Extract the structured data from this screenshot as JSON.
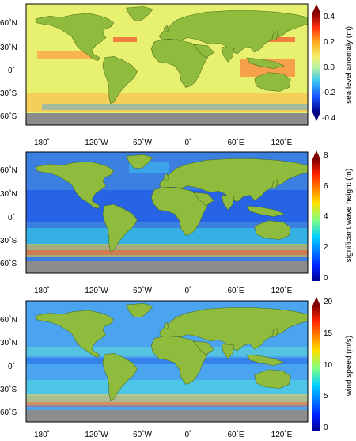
{
  "colors": {
    "land": "#8fbc3c",
    "antarctica": "#8c8c8c",
    "frame": "#000000"
  },
  "shared_axes": {
    "lon_ticks": [
      "180˚",
      "120˚W",
      "60˚W",
      "0˚",
      "60˚E",
      "120˚E"
    ],
    "lat_ticks_upper": [
      "60˚N",
      "30˚N",
      "0˚",
      "30˚S",
      "60˚S"
    ],
    "lat_ticks_lower": [
      "60˚N",
      "30˚N",
      "0˚",
      "30˚S",
      "60˚S"
    ]
  },
  "panels": [
    {
      "name": "sea-level-anomaly",
      "colorbar_label": "sea level anomaly (m)",
      "colorbar_ticks": [
        "0.4",
        "0.2",
        "0.0",
        "-0.2",
        "-0.4"
      ],
      "range": [
        -0.5,
        0.5
      ],
      "palette": "diverging-blue-red",
      "ocean_base": "#e8f070"
    },
    {
      "name": "significant-wave-height",
      "colorbar_label": "significant wave height (m)",
      "colorbar_ticks": [
        "8",
        "6",
        "4",
        "2",
        "0"
      ],
      "range": [
        0,
        8
      ],
      "palette": "jet",
      "ocean_base": "#3b7fe0"
    },
    {
      "name": "wind-speed",
      "colorbar_label": "wind speed (m/s)",
      "colorbar_ticks": [
        "20",
        "15",
        "10",
        "5",
        "0"
      ],
      "range": [
        0,
        20
      ],
      "palette": "jet",
      "ocean_base": "#4aa4f0"
    }
  ]
}
